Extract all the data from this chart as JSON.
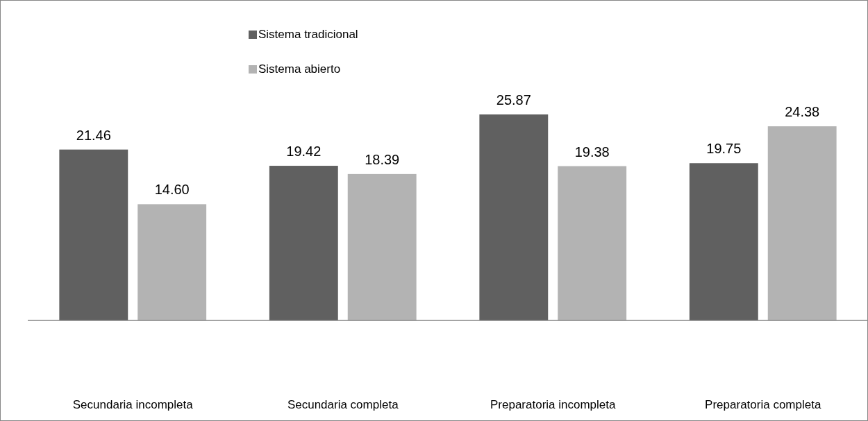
{
  "chart_data": {
    "type": "bar",
    "categories": [
      "Secundaria incompleta",
      "Secundaria completa",
      "Preparatoria incompleta",
      "Preparatoria completa"
    ],
    "series": [
      {
        "name": "Sistema tradicional",
        "color": "#606060",
        "values": [
          21.46,
          19.42,
          25.87,
          19.75
        ],
        "value_labels": [
          "21.46",
          "19.42",
          "25.87",
          "19.75"
        ]
      },
      {
        "name": "Sistema abierto",
        "color": "#b3b3b3",
        "values": [
          14.6,
          18.39,
          19.38,
          24.38
        ],
        "value_labels": [
          "14.60",
          "18.39",
          "19.38",
          "24.38"
        ]
      }
    ],
    "legend": "top"
  }
}
